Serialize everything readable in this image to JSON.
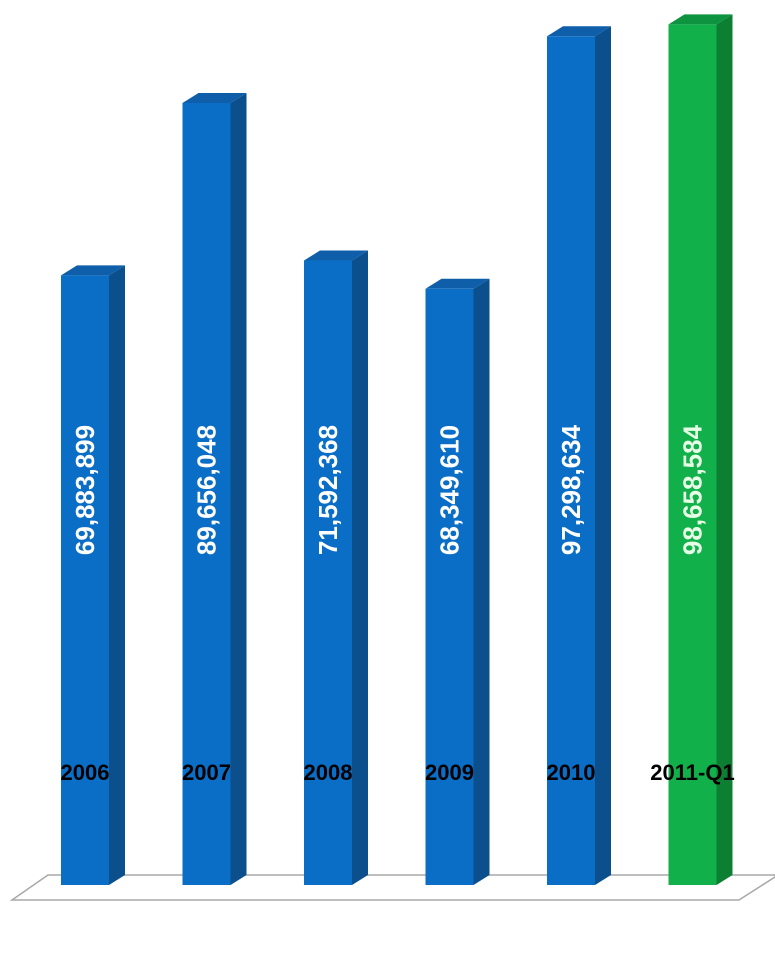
{
  "chart_data": {
    "type": "bar",
    "style": "3d-column",
    "categories": [
      "2006",
      "2007",
      "2008",
      "2009",
      "2010",
      "2011-Q1"
    ],
    "values": [
      69883899,
      89656048,
      71592368,
      68349610,
      97298634,
      98658584
    ],
    "data_labels": [
      "69,883,899",
      "89,656,048",
      "71,592,368",
      "68,349,610",
      "97,298,634",
      "98,658,584"
    ],
    "ylim": [
      0,
      101000000
    ],
    "grid": false,
    "legend": "none",
    "data_label_orientation": "vertical",
    "colors": {
      "default": {
        "front": "#0a6dc6",
        "side": "#0b4f8c",
        "top": "#0f5ea9",
        "label": "#ffffff"
      },
      "highlight": {
        "front": "#12b04a",
        "side": "#0d7f33",
        "top": "#0e9340",
        "label": "#e6ffe6"
      },
      "floor_stroke": "#a8a8a8",
      "category_text": "#000000"
    },
    "highlight_index": 5
  }
}
